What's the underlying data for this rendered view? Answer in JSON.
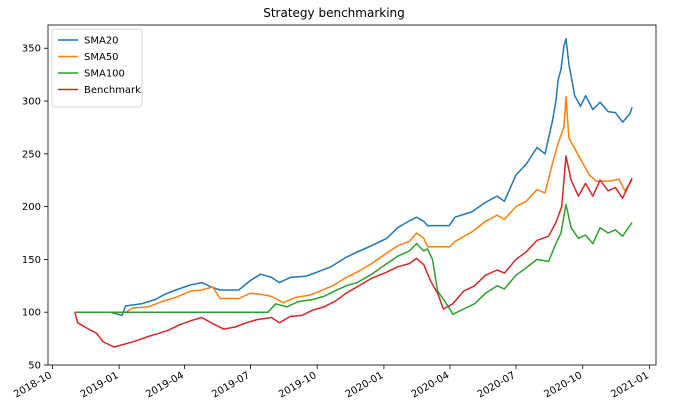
{
  "chart_data": {
    "type": "line",
    "title": "Strategy benchmarking",
    "xlabel": "",
    "ylabel": "",
    "xlim": [
      "2018-09-25",
      "2021-01-10"
    ],
    "ylim": [
      50,
      372
    ],
    "grid": false,
    "legend_position": "top-left",
    "x_ticks": [
      {
        "date": "2018-10-01",
        "label": "2018-10"
      },
      {
        "date": "2019-01-01",
        "label": "2019-01"
      },
      {
        "date": "2019-04-01",
        "label": "2019-04"
      },
      {
        "date": "2019-07-01",
        "label": "2019-07"
      },
      {
        "date": "2019-10-01",
        "label": "2019-10"
      },
      {
        "date": "2020-01-01",
        "label": "2020-01"
      },
      {
        "date": "2020-04-01",
        "label": "2020-04"
      },
      {
        "date": "2020-07-01",
        "label": "2020-07"
      },
      {
        "date": "2020-10-01",
        "label": "2020-10"
      },
      {
        "date": "2021-01-01",
        "label": "2021-01"
      }
    ],
    "y_ticks": [
      50,
      100,
      150,
      200,
      250,
      300,
      350
    ],
    "series": [
      {
        "name": "SMA20",
        "color": "#1f77b4",
        "points": [
          [
            "2018-11-01",
            100
          ],
          [
            "2018-12-20",
            100
          ],
          [
            "2019-01-05",
            97
          ],
          [
            "2019-01-10",
            106
          ],
          [
            "2019-02-01",
            108
          ],
          [
            "2019-02-20",
            112
          ],
          [
            "2019-03-05",
            117
          ],
          [
            "2019-03-20",
            121
          ],
          [
            "2019-04-10",
            126
          ],
          [
            "2019-04-25",
            128
          ],
          [
            "2019-05-08",
            124
          ],
          [
            "2019-05-20",
            121
          ],
          [
            "2019-06-15",
            121
          ],
          [
            "2019-07-01",
            130
          ],
          [
            "2019-07-15",
            136
          ],
          [
            "2019-07-30",
            133
          ],
          [
            "2019-08-10",
            128
          ],
          [
            "2019-08-25",
            133
          ],
          [
            "2019-09-15",
            134
          ],
          [
            "2019-10-01",
            138
          ],
          [
            "2019-10-20",
            143
          ],
          [
            "2019-11-10",
            152
          ],
          [
            "2019-11-25",
            157
          ],
          [
            "2019-12-15",
            163
          ],
          [
            "2020-01-05",
            170
          ],
          [
            "2020-01-20",
            180
          ],
          [
            "2020-02-01",
            185
          ],
          [
            "2020-02-15",
            190
          ],
          [
            "2020-02-25",
            186
          ],
          [
            "2020-03-01",
            182
          ],
          [
            "2020-03-31",
            182
          ],
          [
            "2020-04-08",
            190
          ],
          [
            "2020-05-01",
            195
          ],
          [
            "2020-05-20",
            204
          ],
          [
            "2020-06-05",
            210
          ],
          [
            "2020-06-15",
            205
          ],
          [
            "2020-07-01",
            230
          ],
          [
            "2020-07-15",
            240
          ],
          [
            "2020-07-30",
            256
          ],
          [
            "2020-08-10",
            250
          ],
          [
            "2020-08-20",
            280
          ],
          [
            "2020-08-25",
            300
          ],
          [
            "2020-08-28",
            320
          ],
          [
            "2020-09-01",
            330
          ],
          [
            "2020-09-05",
            352
          ],
          [
            "2020-09-08",
            359
          ],
          [
            "2020-09-12",
            335
          ],
          [
            "2020-09-20",
            305
          ],
          [
            "2020-09-28",
            295
          ],
          [
            "2020-10-05",
            305
          ],
          [
            "2020-10-15",
            292
          ],
          [
            "2020-10-25",
            299
          ],
          [
            "2020-11-05",
            290
          ],
          [
            "2020-11-15",
            289
          ],
          [
            "2020-11-25",
            280
          ],
          [
            "2020-12-05",
            288
          ],
          [
            "2020-12-08",
            294
          ]
        ]
      },
      {
        "name": "SMA50",
        "color": "#ff7f0e",
        "points": [
          [
            "2018-11-01",
            100
          ],
          [
            "2019-01-10",
            100
          ],
          [
            "2019-01-20",
            104
          ],
          [
            "2019-02-10",
            105
          ],
          [
            "2019-03-01",
            110
          ],
          [
            "2019-03-20",
            114
          ],
          [
            "2019-04-10",
            120
          ],
          [
            "2019-04-25",
            121
          ],
          [
            "2019-05-10",
            124
          ],
          [
            "2019-05-20",
            113
          ],
          [
            "2019-06-15",
            113
          ],
          [
            "2019-07-01",
            118
          ],
          [
            "2019-07-15",
            117
          ],
          [
            "2019-07-30",
            115
          ],
          [
            "2019-08-15",
            109
          ],
          [
            "2019-09-01",
            114
          ],
          [
            "2019-09-20",
            116
          ],
          [
            "2019-10-05",
            120
          ],
          [
            "2019-10-25",
            126
          ],
          [
            "2019-11-10",
            133
          ],
          [
            "2019-11-25",
            138
          ],
          [
            "2019-12-15",
            146
          ],
          [
            "2020-01-05",
            156
          ],
          [
            "2020-01-20",
            163
          ],
          [
            "2020-02-05",
            167
          ],
          [
            "2020-02-15",
            175
          ],
          [
            "2020-02-25",
            170
          ],
          [
            "2020-03-01",
            162
          ],
          [
            "2020-04-01",
            162
          ],
          [
            "2020-04-08",
            167
          ],
          [
            "2020-05-01",
            176
          ],
          [
            "2020-05-20",
            186
          ],
          [
            "2020-06-05",
            192
          ],
          [
            "2020-06-15",
            188
          ],
          [
            "2020-07-01",
            200
          ],
          [
            "2020-07-15",
            205
          ],
          [
            "2020-07-30",
            216
          ],
          [
            "2020-08-10",
            213
          ],
          [
            "2020-08-20",
            240
          ],
          [
            "2020-08-28",
            260
          ],
          [
            "2020-09-05",
            275
          ],
          [
            "2020-09-08",
            304
          ],
          [
            "2020-09-12",
            265
          ],
          [
            "2020-09-20",
            255
          ],
          [
            "2020-09-28",
            245
          ],
          [
            "2020-10-10",
            230
          ],
          [
            "2020-10-20",
            224
          ],
          [
            "2020-11-05",
            224
          ],
          [
            "2020-11-20",
            226
          ],
          [
            "2020-11-28",
            215
          ],
          [
            "2020-12-08",
            225
          ]
        ]
      },
      {
        "name": "SMA100",
        "color": "#2ca02c",
        "points": [
          [
            "2018-11-01",
            100
          ],
          [
            "2019-07-25",
            100
          ],
          [
            "2019-08-05",
            108
          ],
          [
            "2019-08-20",
            105
          ],
          [
            "2019-09-05",
            110
          ],
          [
            "2019-09-25",
            112
          ],
          [
            "2019-10-10",
            115
          ],
          [
            "2019-10-25",
            120
          ],
          [
            "2019-11-10",
            125
          ],
          [
            "2019-11-25",
            128
          ],
          [
            "2019-12-15",
            136
          ],
          [
            "2020-01-05",
            146
          ],
          [
            "2020-01-20",
            153
          ],
          [
            "2020-02-05",
            158
          ],
          [
            "2020-02-15",
            165
          ],
          [
            "2020-02-25",
            158
          ],
          [
            "2020-03-01",
            160
          ],
          [
            "2020-03-08",
            150
          ],
          [
            "2020-03-15",
            120
          ],
          [
            "2020-03-25",
            110
          ],
          [
            "2020-04-01",
            103
          ],
          [
            "2020-04-05",
            98
          ],
          [
            "2020-04-20",
            103
          ],
          [
            "2020-05-05",
            108
          ],
          [
            "2020-05-20",
            118
          ],
          [
            "2020-06-05",
            125
          ],
          [
            "2020-06-15",
            122
          ],
          [
            "2020-07-01",
            135
          ],
          [
            "2020-07-15",
            142
          ],
          [
            "2020-07-30",
            150
          ],
          [
            "2020-08-15",
            148
          ],
          [
            "2020-08-25",
            165
          ],
          [
            "2020-09-01",
            175
          ],
          [
            "2020-09-08",
            202
          ],
          [
            "2020-09-15",
            180
          ],
          [
            "2020-09-25",
            170
          ],
          [
            "2020-10-05",
            173
          ],
          [
            "2020-10-15",
            165
          ],
          [
            "2020-10-25",
            180
          ],
          [
            "2020-11-05",
            175
          ],
          [
            "2020-11-15",
            178
          ],
          [
            "2020-11-25",
            172
          ],
          [
            "2020-12-08",
            185
          ]
        ]
      },
      {
        "name": "Benchmark",
        "color": "#d62728",
        "points": [
          [
            "2018-11-01",
            100
          ],
          [
            "2018-11-05",
            90
          ],
          [
            "2018-11-20",
            84
          ],
          [
            "2018-12-01",
            80
          ],
          [
            "2018-12-10",
            72
          ],
          [
            "2018-12-25",
            67
          ],
          [
            "2019-01-10",
            70
          ],
          [
            "2019-01-25",
            73
          ],
          [
            "2019-02-10",
            77
          ],
          [
            "2019-02-25",
            80
          ],
          [
            "2019-03-10",
            83
          ],
          [
            "2019-03-25",
            88
          ],
          [
            "2019-04-10",
            92
          ],
          [
            "2019-04-25",
            95
          ],
          [
            "2019-05-08",
            90
          ],
          [
            "2019-05-25",
            84
          ],
          [
            "2019-06-10",
            86
          ],
          [
            "2019-06-25",
            90
          ],
          [
            "2019-07-10",
            93
          ],
          [
            "2019-07-30",
            95
          ],
          [
            "2019-08-10",
            90
          ],
          [
            "2019-08-25",
            96
          ],
          [
            "2019-09-10",
            97
          ],
          [
            "2019-09-25",
            102
          ],
          [
            "2019-10-10",
            105
          ],
          [
            "2019-10-25",
            110
          ],
          [
            "2019-11-10",
            118
          ],
          [
            "2019-11-25",
            124
          ],
          [
            "2019-12-15",
            132
          ],
          [
            "2020-01-05",
            138
          ],
          [
            "2020-01-20",
            143
          ],
          [
            "2020-02-05",
            146
          ],
          [
            "2020-02-15",
            151
          ],
          [
            "2020-02-25",
            145
          ],
          [
            "2020-03-05",
            130
          ],
          [
            "2020-03-15",
            118
          ],
          [
            "2020-03-23",
            103
          ],
          [
            "2020-04-05",
            108
          ],
          [
            "2020-04-20",
            120
          ],
          [
            "2020-05-05",
            125
          ],
          [
            "2020-05-20",
            135
          ],
          [
            "2020-06-05",
            140
          ],
          [
            "2020-06-15",
            137
          ],
          [
            "2020-07-01",
            150
          ],
          [
            "2020-07-15",
            157
          ],
          [
            "2020-07-30",
            168
          ],
          [
            "2020-08-15",
            172
          ],
          [
            "2020-08-25",
            185
          ],
          [
            "2020-09-02",
            200
          ],
          [
            "2020-09-08",
            248
          ],
          [
            "2020-09-15",
            225
          ],
          [
            "2020-09-25",
            210
          ],
          [
            "2020-10-05",
            222
          ],
          [
            "2020-10-15",
            210
          ],
          [
            "2020-10-25",
            225
          ],
          [
            "2020-11-05",
            215
          ],
          [
            "2020-11-15",
            218
          ],
          [
            "2020-11-25",
            208
          ],
          [
            "2020-12-08",
            227
          ]
        ]
      }
    ]
  }
}
